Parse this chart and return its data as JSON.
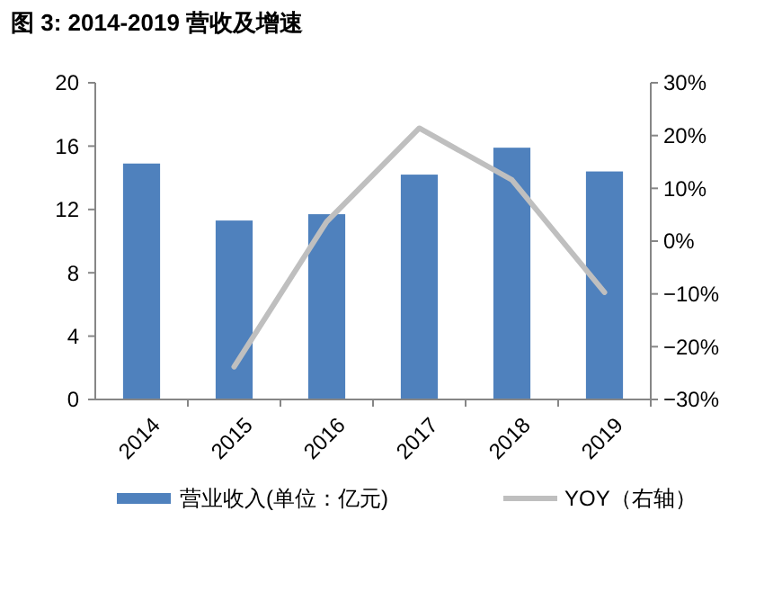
{
  "chart_data": {
    "type": "bar",
    "title": "图 3: 2014-2019 营收及增速",
    "categories": [
      "2014",
      "2015",
      "2016",
      "2017",
      "2018",
      "2019"
    ],
    "series": [
      {
        "name": "营业收入(单位：亿元)",
        "color": "#4f81bd",
        "values": [
          14.9,
          11.3,
          11.7,
          14.2,
          15.9,
          14.4
        ]
      },
      {
        "name": "YOY（右轴）",
        "type": "line",
        "axis": "y2",
        "color": "#bfbfbf",
        "values": [
          null,
          -23.8,
          3.7,
          21.4,
          11.6,
          -9.7
        ]
      }
    ],
    "ylim": [
      0,
      20
    ],
    "yticks": [
      0,
      4,
      8,
      12,
      16,
      20
    ],
    "y2lim": [
      -30,
      30
    ],
    "y2ticks": [
      {
        "value": -30,
        "label": "−30%"
      },
      {
        "value": -20,
        "label": "−20%"
      },
      {
        "value": -10,
        "label": "−10%"
      },
      {
        "value": 0,
        "label": "0%"
      },
      {
        "value": 10,
        "label": "10%"
      },
      {
        "value": 20,
        "label": "20%"
      },
      {
        "value": 30,
        "label": "30%"
      }
    ],
    "legend": "bottom",
    "marker": "none",
    "line_style": "solid",
    "grid": false
  }
}
